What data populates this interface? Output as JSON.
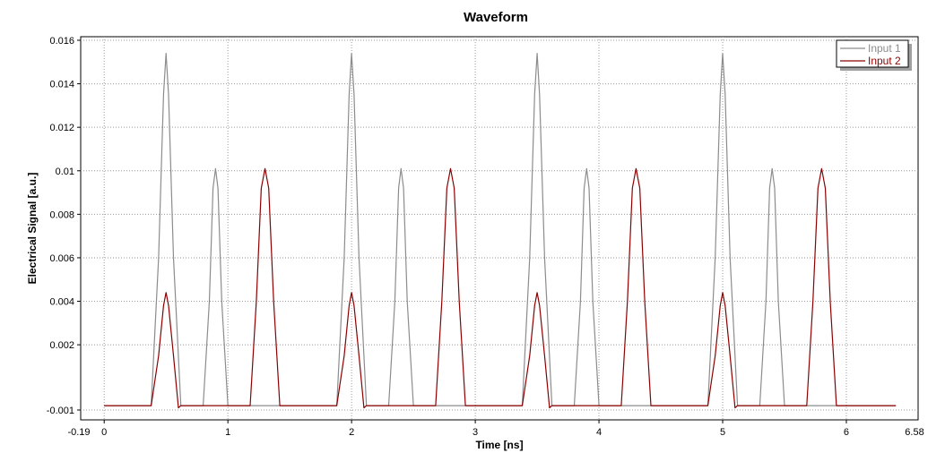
{
  "chart_data": {
    "type": "line",
    "title": "Waveform",
    "xlabel": "Time [ns]",
    "ylabel": "Electrical Signal [a.u.]",
    "xlim": [
      -0.19,
      6.58
    ],
    "ylim": [
      -0.001,
      0.016
    ],
    "x_ticks": [
      0,
      1,
      2,
      3,
      4,
      5,
      6
    ],
    "x_tick_labels": [
      "0",
      "1",
      "2",
      "3",
      "4",
      "5",
      "6"
    ],
    "x_edge_labels": [
      "-0.19",
      "6.58"
    ],
    "y_ticks": [
      0.016,
      0.014,
      0.012,
      0.01,
      0.008,
      0.006,
      0.004,
      0.002,
      -0.001
    ],
    "y_tick_labels": [
      "0.016",
      "0.014",
      "0.012",
      "0.01",
      "0.008",
      "0.006",
      "0.004",
      "0.002",
      "-0.001"
    ],
    "grid": true,
    "legend_position": "top-right",
    "series": [
      {
        "name": "Input 1",
        "color": "#8c8c8c",
        "x": [
          0,
          0.38,
          0.44,
          0.48,
          0.5,
          0.52,
          0.56,
          0.62,
          0.8,
          0.85,
          0.88,
          0.9,
          0.92,
          0.95,
          1.0,
          1.88,
          1.94,
          1.98,
          2.0,
          2.02,
          2.06,
          2.12,
          2.3,
          2.35,
          2.38,
          2.4,
          2.42,
          2.45,
          2.5,
          3.38,
          3.44,
          3.48,
          3.5,
          3.52,
          3.56,
          3.62,
          3.8,
          3.85,
          3.88,
          3.9,
          3.92,
          3.95,
          4.0,
          4.88,
          4.94,
          4.98,
          5.0,
          5.02,
          5.06,
          5.12,
          5.3,
          5.35,
          5.38,
          5.4,
          5.42,
          5.45,
          5.5,
          6.4
        ],
        "y": [
          -0.0008,
          -0.0008,
          0.006,
          0.0135,
          0.0154,
          0.0135,
          0.006,
          -0.0008,
          -0.0008,
          0.004,
          0.0092,
          0.0101,
          0.0092,
          0.004,
          -0.0008,
          -0.0008,
          0.006,
          0.0135,
          0.0154,
          0.0135,
          0.006,
          -0.0008,
          -0.0008,
          0.004,
          0.0092,
          0.0101,
          0.0092,
          0.004,
          -0.0008,
          -0.0008,
          0.006,
          0.0135,
          0.0154,
          0.0135,
          0.006,
          -0.0008,
          -0.0008,
          0.004,
          0.0092,
          0.0101,
          0.0092,
          0.004,
          -0.0008,
          -0.0008,
          0.006,
          0.0135,
          0.0154,
          0.0135,
          0.006,
          -0.0008,
          -0.0008,
          0.004,
          0.0092,
          0.0101,
          0.0092,
          0.004,
          -0.0008,
          -0.0008
        ]
      },
      {
        "name": "Input 2",
        "color": "#8b0000",
        "x": [
          0,
          0.38,
          0.44,
          0.48,
          0.5,
          0.52,
          0.56,
          0.6,
          0.62,
          1.18,
          1.23,
          1.27,
          1.3,
          1.33,
          1.37,
          1.42,
          1.88,
          1.94,
          1.98,
          2.0,
          2.02,
          2.06,
          2.1,
          2.12,
          2.68,
          2.73,
          2.77,
          2.8,
          2.83,
          2.87,
          2.92,
          3.38,
          3.44,
          3.48,
          3.5,
          3.52,
          3.56,
          3.6,
          3.62,
          4.18,
          4.23,
          4.27,
          4.3,
          4.33,
          4.37,
          4.42,
          4.88,
          4.94,
          4.98,
          5.0,
          5.02,
          5.06,
          5.1,
          5.12,
          5.68,
          5.73,
          5.77,
          5.8,
          5.83,
          5.87,
          5.92,
          6.4
        ],
        "y": [
          -0.0008,
          -0.0008,
          0.0015,
          0.0038,
          0.0044,
          0.0038,
          0.0015,
          -0.0009,
          -0.0008,
          -0.0008,
          0.004,
          0.0092,
          0.0101,
          0.0092,
          0.004,
          -0.0008,
          -0.0008,
          0.0015,
          0.0038,
          0.0044,
          0.0038,
          0.0015,
          -0.0009,
          -0.0008,
          -0.0008,
          0.004,
          0.0092,
          0.0101,
          0.0092,
          0.004,
          -0.0008,
          -0.0008,
          0.0015,
          0.0038,
          0.0044,
          0.0038,
          0.0015,
          -0.0009,
          -0.0008,
          -0.0008,
          0.004,
          0.0092,
          0.0101,
          0.0092,
          0.004,
          -0.0008,
          -0.0008,
          0.0015,
          0.0038,
          0.0044,
          0.0038,
          0.0015,
          -0.0009,
          -0.0008,
          -0.0008,
          0.004,
          0.0092,
          0.0101,
          0.0092,
          0.004,
          -0.0008,
          -0.0008
        ]
      }
    ]
  }
}
